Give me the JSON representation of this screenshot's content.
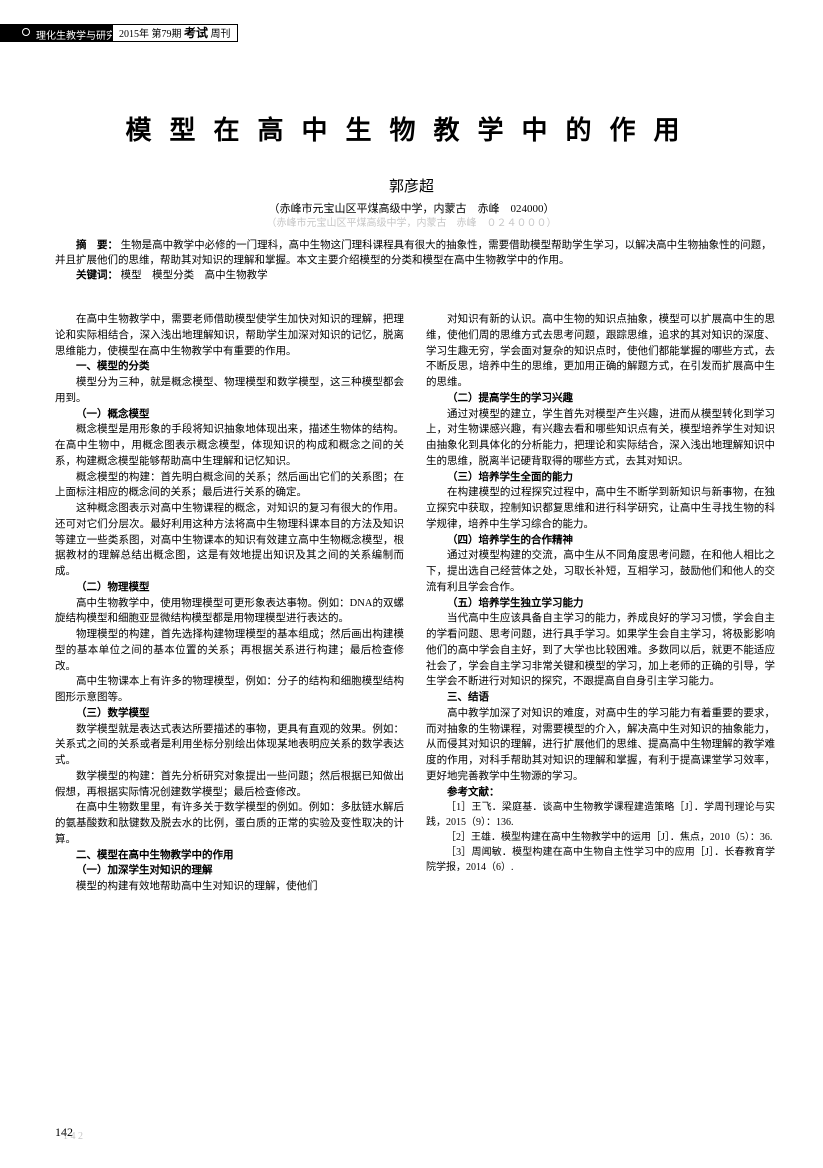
{
  "header": {
    "left_label": "理化生教学与研究",
    "year_issue": "2015年 第79期",
    "journal_bold": "考试",
    "journal_rest": "周刊"
  },
  "title": "模型在高中生物教学中的作用",
  "author": "郭彦超",
  "affiliation": "（赤峰市元宝山区平煤高级中学，内蒙古　赤峰　024000）",
  "affiliation_ghost": "（赤峰市元宝山区平煤高级中学，内蒙古　赤峰　０２４０００）",
  "abstract": {
    "label": "摘　要：",
    "text": "生物是高中教学中必修的一门理科，高中生物这门理科课程具有很大的抽象性，需要借助模型帮助学生学习，以解决高中生物抽象性的问题，并且扩展他们的思维，帮助其对知识的理解和掌握。本文主要介绍模型的分类和模型在高中生物教学中的作用。",
    "keywords_label": "关键词：",
    "keywords": "模型　模型分类　高中生物教学"
  },
  "left_col": [
    {
      "type": "p",
      "text": "在高中生物教学中，需要老师借助模型使学生加快对知识的理解，把理论和实际相结合，深入浅出地理解知识，帮助学生加深对知识的记忆，脱离思维能力，使模型在高中生物教学中有重要的作用。"
    },
    {
      "type": "h",
      "text": "一、模型的分类"
    },
    {
      "type": "p",
      "text": "模型分为三种，就是概念模型、物理模型和数学模型，这三种模型都会用到。"
    },
    {
      "type": "h",
      "text": "（一）概念模型"
    },
    {
      "type": "p",
      "text": "概念模型是用形象的手段将知识抽象地体现出来，描述生物体的结构。在高中生物中，用概念图表示概念模型，体现知识的构成和概念之间的关系，构建概念模型能够帮助高中生理解和记忆知识。"
    },
    {
      "type": "p",
      "text": "概念模型的构建：首先明白概念间的关系；然后画出它们的关系图；在上面标注相应的概念间的关系；最后进行关系的确定。"
    },
    {
      "type": "p",
      "text": "这种概念图表示对高中生物课程的概念，对知识的复习有很大的作用。还可对它们分层次。最好利用这种方法将高中生物理科课本目的方法及知识等建立一些类系图，对高中生物课本的知识有效建立高中生物概念模型，根据教材的理解总结出概念图，这是有效地提出知识及其之间的关系编制而成。"
    },
    {
      "type": "h",
      "text": "（二）物理模型"
    },
    {
      "type": "p",
      "text": "高中生物教学中，使用物理模型可更形象表达事物。例如：DNA的双螺旋结构模型和细胞亚显微结构模型都是用物理模型进行表达的。"
    },
    {
      "type": "p",
      "text": "物理模型的构建，首先选择构建物理模型的基本组成；然后画出构建模型的基本单位之间的基本位置的关系；再根据关系进行构建；最后检查修改。"
    },
    {
      "type": "p",
      "text": "高中生物课本上有许多的物理模型，例如：分子的结构和细胞模型结构图形示意图等。"
    },
    {
      "type": "h",
      "text": "（三）数学模型"
    },
    {
      "type": "p",
      "text": "数学模型就是表达式表达所要描述的事物，更具有直观的效果。例如：关系式之间的关系或者是利用坐标分别绘出体现某地表明应关系的数学表达式。"
    },
    {
      "type": "p",
      "text": "数学模型的构建：首先分析研究对象提出一些问题；然后根据已知做出假想，再根据实际情况创建数学模型；最后检查修改。"
    },
    {
      "type": "p",
      "text": "在高中生物数里里，有许多关于数学模型的例如。例如：多肽链水解后的氨基酸数和肽键数及脱去水的比例，蛋白质的正常的实验及变性取决的计算。"
    },
    {
      "type": "h",
      "text": "二、模型在高中生物教学中的作用"
    },
    {
      "type": "h",
      "text": "（一）加深学生对知识的理解"
    },
    {
      "type": "p",
      "text": "模型的构建有效地帮助高中生对知识的理解，使他们"
    }
  ],
  "right_col": [
    {
      "type": "p",
      "text": "对知识有新的认识。高中生物的知识点抽象，模型可以扩展高中生的思维，使他们周的思维方式去思考问题，跟踪思维，追求的其对知识的深度、学习生趣无穷，学会面对复杂的知识点时，使他们都能掌握的哪些方式，去不断反思，培养中生的思维，更加用正确的解题方式，在引发而扩展高中生的思维。"
    },
    {
      "type": "h",
      "text": "（二）提高学生的学习兴趣"
    },
    {
      "type": "p",
      "text": "通过对模型的建立，学生首先对模型产生兴趣，进而从模型转化到学习上，对生物课感兴趣，有兴趣去看和哪些知识点有关，模型培养学生对知识由抽象化到具体化的分析能力，把理论和实际结合，深入浅出地理解知识中生的思维，脱离半记硬背取得的哪些方式，去其对知识。"
    },
    {
      "type": "h",
      "text": "（三）培养学生全面的能力"
    },
    {
      "type": "p",
      "text": "在构建模型的过程探究过程中，高中生不断学到新知识与新事物，在独立探究中获取，控制知识都复思维和进行科学研究，让高中生寻找生物的科学规律，培养中生学习综合的能力。"
    },
    {
      "type": "h",
      "text": "（四）培养学生的合作精神"
    },
    {
      "type": "p",
      "text": "通过对模型构建的交流，高中生从不同角度思考问题，在和他人相比之下，提出选自己经营体之处，习取长补短，互相学习，鼓励他们和他人的交流有利且学会合作。"
    },
    {
      "type": "h",
      "text": "（五）培养学生独立学习能力"
    },
    {
      "type": "p",
      "text": "当代高中生应该具备自主学习的能力，养成良好的学习习惯，学会自主的学看问题、思考问题，进行具手学习。如果学生会自主学习，将极影影响他们的高中学会自主好，到了大学也比较困难。多数同以后，就更不能适应社会了，学会自主学习非常关键和模型的学习，加上老师的正确的引导，学生学会不断进行对知识的探究，不跟提高自自身引主学习能力。"
    },
    {
      "type": "h",
      "text": "三、结语"
    },
    {
      "type": "p",
      "text": "高中教学加深了对知识的难度，对高中生的学习能力有着重要的要求，而对抽象的生物课程，对需要模型的介入，解决高中生对知识的抽象能力，从而侵其对知识的理解，进行扩展他们的思维、提高高中生物理解的教学难度的作用，对科手帮助其对知识的理解和掌握，有利于提高课堂学习效率，更好地完善教学中生物源的学习。"
    },
    {
      "type": "refh",
      "text": "参考文献："
    },
    {
      "type": "ref",
      "text": "［1］王飞．梁庭基．谈高中生物教学课程建造策略［J］．学周刊理论与实践，2015（9）：136."
    },
    {
      "type": "ref",
      "text": "［2］王雄．模型构建在高中生物教学中的运用［J］．焦点，2010（5）：36."
    },
    {
      "type": "ref",
      "text": "［3］周闻敏．模型构建在高中生物自主性学习中的应用［J］．长春教育学院学报，2014（6）."
    }
  ],
  "page_number": "142",
  "colors": {
    "text": "#000000",
    "background": "#ffffff",
    "ghost": "#999999",
    "header_black": "#000000"
  }
}
